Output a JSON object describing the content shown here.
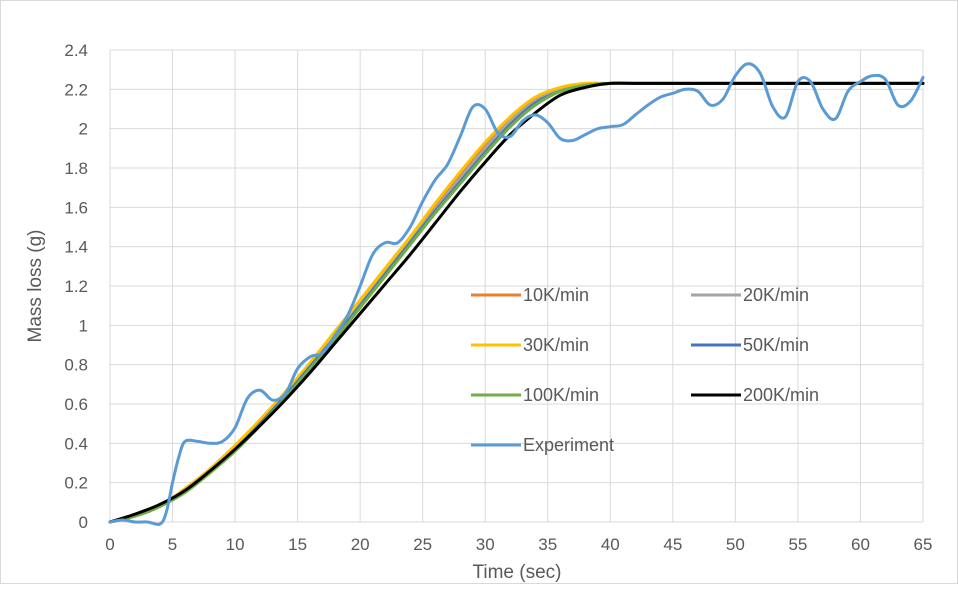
{
  "chart_data": {
    "type": "line",
    "title": "",
    "xlabel": "Time (sec)",
    "ylabel": "Mass loss (g)",
    "xlim": [
      0,
      65
    ],
    "ylim": [
      0,
      2.4
    ],
    "x_ticks": [
      0,
      5,
      10,
      15,
      20,
      25,
      30,
      35,
      40,
      45,
      50,
      55,
      60,
      65
    ],
    "y_ticks": [
      0,
      0.2,
      0.4,
      0.6,
      0.8,
      1,
      1.2,
      1.4,
      1.6,
      1.8,
      2,
      2.2,
      2.4
    ],
    "x_tick_labels": [
      "0",
      "5",
      "10",
      "15",
      "20",
      "25",
      "30",
      "35",
      "40",
      "45",
      "50",
      "55",
      "60",
      "65"
    ],
    "y_tick_labels": [
      "0",
      "0.2",
      "0.4",
      "0.6",
      "0.8",
      "1",
      "1.2",
      "1.4",
      "1.6",
      "1.8",
      "2",
      "2.2",
      "2.4"
    ],
    "grid": true,
    "legend_position": "inside-right",
    "series": [
      {
        "name": "10K/min",
        "color": "#ed7d31",
        "x": [
          0,
          2,
          4,
          6,
          8,
          10,
          12,
          14,
          16,
          18,
          20,
          22,
          24,
          26,
          28,
          30,
          32,
          34,
          36,
          38,
          40,
          42,
          44,
          65
        ],
        "y": [
          0,
          0.03,
          0.08,
          0.16,
          0.26,
          0.38,
          0.51,
          0.65,
          0.8,
          0.96,
          1.12,
          1.28,
          1.44,
          1.6,
          1.76,
          1.91,
          2.05,
          2.15,
          2.2,
          2.22,
          2.23,
          2.23,
          2.23,
          2.23
        ]
      },
      {
        "name": "20K/min",
        "color": "#a5a5a5",
        "x": [
          0,
          2,
          4,
          6,
          8,
          10,
          12,
          14,
          16,
          18,
          20,
          22,
          24,
          26,
          28,
          30,
          32,
          34,
          36,
          38,
          40,
          42,
          44,
          65
        ],
        "y": [
          0,
          0.03,
          0.08,
          0.16,
          0.26,
          0.38,
          0.51,
          0.65,
          0.8,
          0.95,
          1.11,
          1.27,
          1.43,
          1.59,
          1.75,
          1.9,
          2.04,
          2.14,
          2.2,
          2.22,
          2.23,
          2.23,
          2.23,
          2.23
        ]
      },
      {
        "name": "30K/min",
        "color": "#ffc000",
        "x": [
          0,
          2,
          4,
          6,
          8,
          10,
          12,
          14,
          16,
          18,
          20,
          22,
          24,
          26,
          28,
          30,
          32,
          34,
          36,
          38,
          40,
          42,
          44,
          65
        ],
        "y": [
          0,
          0.03,
          0.08,
          0.17,
          0.27,
          0.39,
          0.52,
          0.66,
          0.81,
          0.97,
          1.13,
          1.29,
          1.45,
          1.62,
          1.78,
          1.93,
          2.06,
          2.16,
          2.21,
          2.23,
          2.23,
          2.23,
          2.23,
          2.23
        ]
      },
      {
        "name": "50K/min",
        "color": "#4472c4",
        "x": [
          0,
          2,
          4,
          6,
          8,
          10,
          12,
          14,
          16,
          18,
          20,
          22,
          24,
          26,
          28,
          30,
          32,
          34,
          36,
          38,
          40,
          42,
          44,
          65
        ],
        "y": [
          0,
          0.03,
          0.08,
          0.16,
          0.26,
          0.37,
          0.5,
          0.64,
          0.79,
          0.94,
          1.1,
          1.26,
          1.42,
          1.58,
          1.73,
          1.88,
          2.02,
          2.13,
          2.19,
          2.22,
          2.23,
          2.23,
          2.23,
          2.23
        ]
      },
      {
        "name": "100K/min",
        "color": "#70ad47",
        "x": [
          0,
          2,
          4,
          6,
          8,
          10,
          12,
          14,
          16,
          18,
          20,
          22,
          24,
          26,
          28,
          30,
          32,
          34,
          36,
          38,
          40,
          42,
          44,
          65
        ],
        "y": [
          0,
          0.03,
          0.08,
          0.15,
          0.25,
          0.36,
          0.49,
          0.63,
          0.78,
          0.93,
          1.09,
          1.25,
          1.41,
          1.57,
          1.72,
          1.87,
          2.01,
          2.12,
          2.19,
          2.22,
          2.23,
          2.23,
          2.23,
          2.23
        ]
      },
      {
        "name": "200K/min",
        "color": "#000000",
        "x": [
          0,
          2,
          4,
          6,
          8,
          10,
          12,
          14,
          16,
          18,
          20,
          22,
          24,
          26,
          28,
          30,
          32,
          34,
          36,
          38,
          40,
          42,
          44,
          65
        ],
        "y": [
          0,
          0.04,
          0.09,
          0.16,
          0.26,
          0.37,
          0.49,
          0.62,
          0.76,
          0.91,
          1.06,
          1.21,
          1.36,
          1.52,
          1.68,
          1.83,
          1.97,
          2.08,
          2.17,
          2.21,
          2.23,
          2.23,
          2.23,
          2.23
        ]
      },
      {
        "name": "Experiment",
        "color": "#5b9bd5",
        "x": [
          0,
          1,
          2,
          3,
          4,
          4.5,
          5,
          5.5,
          6,
          7,
          8,
          9,
          10,
          11,
          12,
          13,
          14,
          15,
          16,
          17,
          18,
          19,
          20,
          21,
          22,
          23,
          24,
          25,
          26,
          27,
          28,
          29,
          30,
          31,
          32,
          33,
          34,
          35,
          36,
          37,
          38,
          39,
          40,
          41,
          42,
          43,
          44,
          45,
          46,
          47,
          48,
          49,
          50,
          51,
          52,
          53,
          54,
          55,
          56,
          57,
          58,
          59,
          60,
          61,
          62,
          63,
          64,
          65
        ],
        "y": [
          0,
          0.01,
          0,
          0,
          -0.01,
          0.05,
          0.2,
          0.33,
          0.41,
          0.41,
          0.4,
          0.41,
          0.48,
          0.63,
          0.67,
          0.62,
          0.65,
          0.78,
          0.84,
          0.86,
          0.95,
          1.05,
          1.2,
          1.36,
          1.42,
          1.42,
          1.5,
          1.63,
          1.74,
          1.82,
          1.96,
          2.11,
          2.1,
          1.98,
          1.96,
          2.04,
          2.07,
          2.03,
          1.95,
          1.94,
          1.97,
          2.0,
          2.01,
          2.02,
          2.07,
          2.12,
          2.16,
          2.18,
          2.2,
          2.19,
          2.12,
          2.15,
          2.27,
          2.33,
          2.28,
          2.11,
          2.06,
          2.24,
          2.24,
          2.1,
          2.05,
          2.19,
          2.24,
          2.27,
          2.25,
          2.12,
          2.14,
          2.26
        ]
      }
    ]
  }
}
